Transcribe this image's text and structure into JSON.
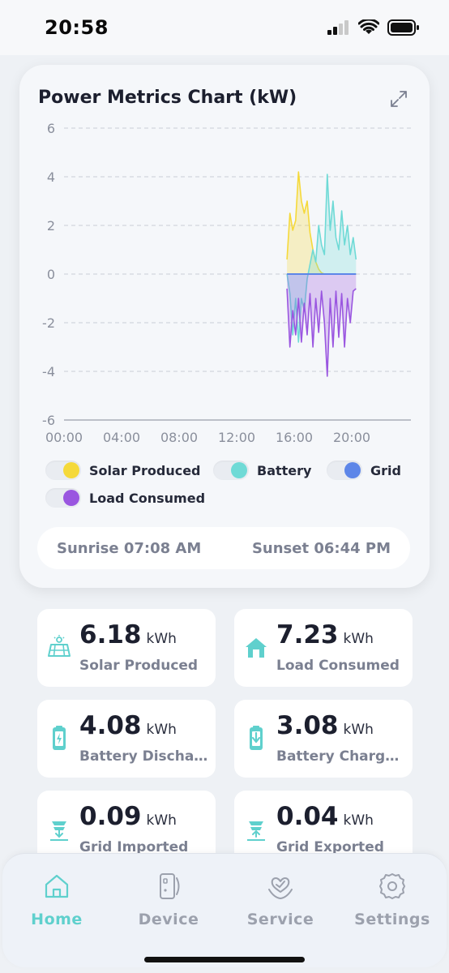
{
  "status": {
    "time": "20:58"
  },
  "chart": {
    "title": "Power Metrics Chart (kW)",
    "sunrise": "Sunrise 07:08 AM",
    "sunset": "Sunset 06:44 PM",
    "legend": [
      {
        "label": "Solar Produced",
        "color": "#f5d93a"
      },
      {
        "label": "Battery",
        "color": "#6fdad6"
      },
      {
        "label": "Grid",
        "color": "#5d86e8"
      },
      {
        "label": "Load Consumed",
        "color": "#9a56e0"
      }
    ]
  },
  "chart_data": {
    "type": "area",
    "ylim": [
      -6,
      6
    ],
    "yticks": [
      "6",
      "4",
      "2",
      "0",
      "-2",
      "-4",
      "-6"
    ],
    "xticks": [
      "00:00",
      "04:00",
      "08:00",
      "12:00",
      "16:00",
      "20:00"
    ],
    "x_hours": [
      15.5,
      15.7,
      15.9,
      16.1,
      16.3,
      16.5,
      16.7,
      16.9,
      17.1,
      17.3,
      17.5,
      17.7,
      17.9,
      18.1,
      18.3,
      18.5,
      18.7,
      18.9,
      19.1,
      19.3,
      19.5,
      19.7,
      19.9,
      20.1,
      20.3
    ],
    "series": [
      {
        "name": "Solar Produced",
        "color": "#f5d93a",
        "values": [
          0.6,
          2.5,
          1.8,
          2.2,
          4.2,
          3.0,
          2.5,
          3.0,
          1.7,
          1.0,
          0.5,
          0.2,
          0.05,
          0,
          0,
          0,
          0,
          0,
          0,
          0,
          0,
          0,
          0,
          0,
          0
        ]
      },
      {
        "name": "Battery",
        "color": "#6fdad6",
        "values": [
          0,
          -0.8,
          -2.5,
          -1.0,
          -2.8,
          -1.0,
          -1.5,
          -0.2,
          0.4,
          1.0,
          0.5,
          2.0,
          1.2,
          0.8,
          4.1,
          1.8,
          3.0,
          1.5,
          1.0,
          2.6,
          1.2,
          2.0,
          0.8,
          1.5,
          0.6
        ]
      },
      {
        "name": "Grid",
        "color": "#5d86e8",
        "values": [
          0,
          0,
          0,
          0,
          0,
          0,
          0,
          0,
          0,
          0,
          0,
          0,
          0,
          0,
          0,
          0,
          0,
          0,
          0,
          0,
          0,
          0,
          0,
          0,
          0
        ]
      },
      {
        "name": "Load Consumed",
        "color": "#9a56e0",
        "values": [
          -0.6,
          -3.0,
          -1.5,
          -2.5,
          -1.0,
          -2.8,
          -1.2,
          -2.5,
          -0.8,
          -3.0,
          -1.0,
          -2.4,
          -0.7,
          -2.0,
          -4.2,
          -1.0,
          -3.0,
          -0.7,
          -2.6,
          -0.8,
          -3.0,
          -1.0,
          -2.0,
          -0.7,
          -0.6
        ]
      }
    ]
  },
  "stats": [
    {
      "value": "6.18",
      "unit": "kWh",
      "label": "Solar Produced"
    },
    {
      "value": "7.23",
      "unit": "kWh",
      "label": "Load Consumed"
    },
    {
      "value": "4.08",
      "unit": "kWh",
      "label": "Battery Discha…"
    },
    {
      "value": "3.08",
      "unit": "kWh",
      "label": "Battery Charg…"
    },
    {
      "value": "0.09",
      "unit": "kWh",
      "label": "Grid Imported"
    },
    {
      "value": "0.04",
      "unit": "kWh",
      "label": "Grid Exported"
    }
  ],
  "tabs": [
    {
      "label": "Home",
      "icon": "home-icon",
      "active": true
    },
    {
      "label": "Device",
      "icon": "device-icon",
      "active": false
    },
    {
      "label": "Service",
      "icon": "service-icon",
      "active": false
    },
    {
      "label": "Settings",
      "icon": "gear-icon",
      "active": false
    }
  ],
  "colors": {
    "accent": "#5fd0cd",
    "inactive": "#9ca1ad"
  }
}
